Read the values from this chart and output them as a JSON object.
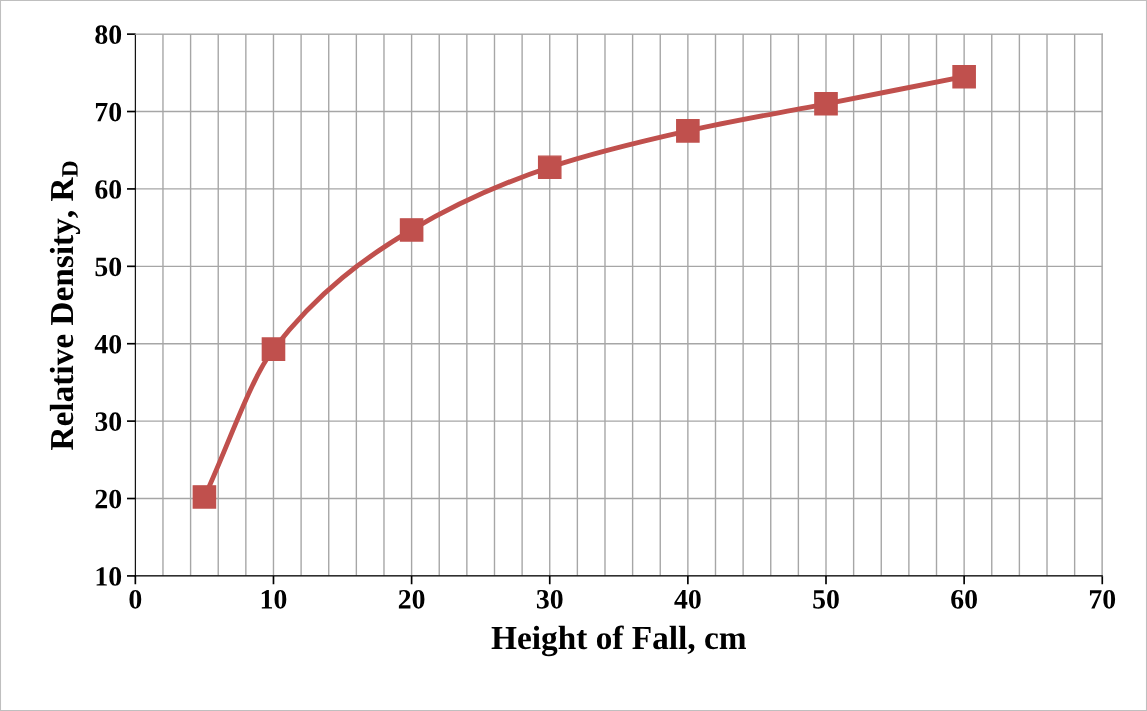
{
  "chart_data": {
    "type": "line",
    "xlabel": "Height of Fall, cm",
    "ylabel": "Relative Density, R$_{D}$",
    "x": [
      5,
      10,
      20,
      30,
      40,
      50,
      60
    ],
    "series": [
      {
        "color": "#c0504d",
        "values": [
          20.2,
          39.3,
          54.7,
          62.8,
          67.5,
          71.0,
          74.5
        ]
      }
    ],
    "xlim": [
      0,
      70
    ],
    "ylim": [
      10,
      80
    ],
    "xticks": [
      0,
      {
        "value": 2,
        "label": null
      },
      {
        "value": 4,
        "label": null
      },
      {
        "value": 6,
        "label": null
      },
      {
        "value": 8,
        "label": null
      },
      10,
      {
        "value": 12,
        "label": null
      },
      {
        "value": 14,
        "label": null
      },
      {
        "value": 16,
        "label": null
      },
      {
        "value": 18,
        "label": null
      },
      20,
      {
        "value": 22,
        "label": null
      },
      {
        "value": 24,
        "label": null
      },
      {
        "value": 26,
        "label": null
      },
      {
        "value": 28,
        "label": null
      },
      30,
      {
        "value": 32,
        "label": null
      },
      {
        "value": 34,
        "label": null
      },
      {
        "value": 36,
        "label": null
      },
      {
        "value": 38,
        "label": null
      },
      40,
      {
        "value": 42,
        "label": null
      },
      {
        "value": 44,
        "label": null
      },
      {
        "value": 46,
        "label": null
      },
      {
        "value": 48,
        "label": null
      },
      50,
      {
        "value": 52,
        "label": null
      },
      {
        "value": 54,
        "label": null
      },
      {
        "value": 56,
        "label": null
      },
      {
        "value": 58,
        "label": null
      },
      60,
      {
        "value": 62,
        "label": null
      },
      {
        "value": 64,
        "label": null
      },
      {
        "value": 66,
        "label": null
      },
      {
        "value": 68,
        "label": null
      },
      70
    ],
    "yticks": [
      10,
      20,
      30,
      40,
      50,
      60,
      70,
      80
    ],
    "grid": true,
    "marker": "square",
    "line_style": "solid",
    "legend": false
  }
}
